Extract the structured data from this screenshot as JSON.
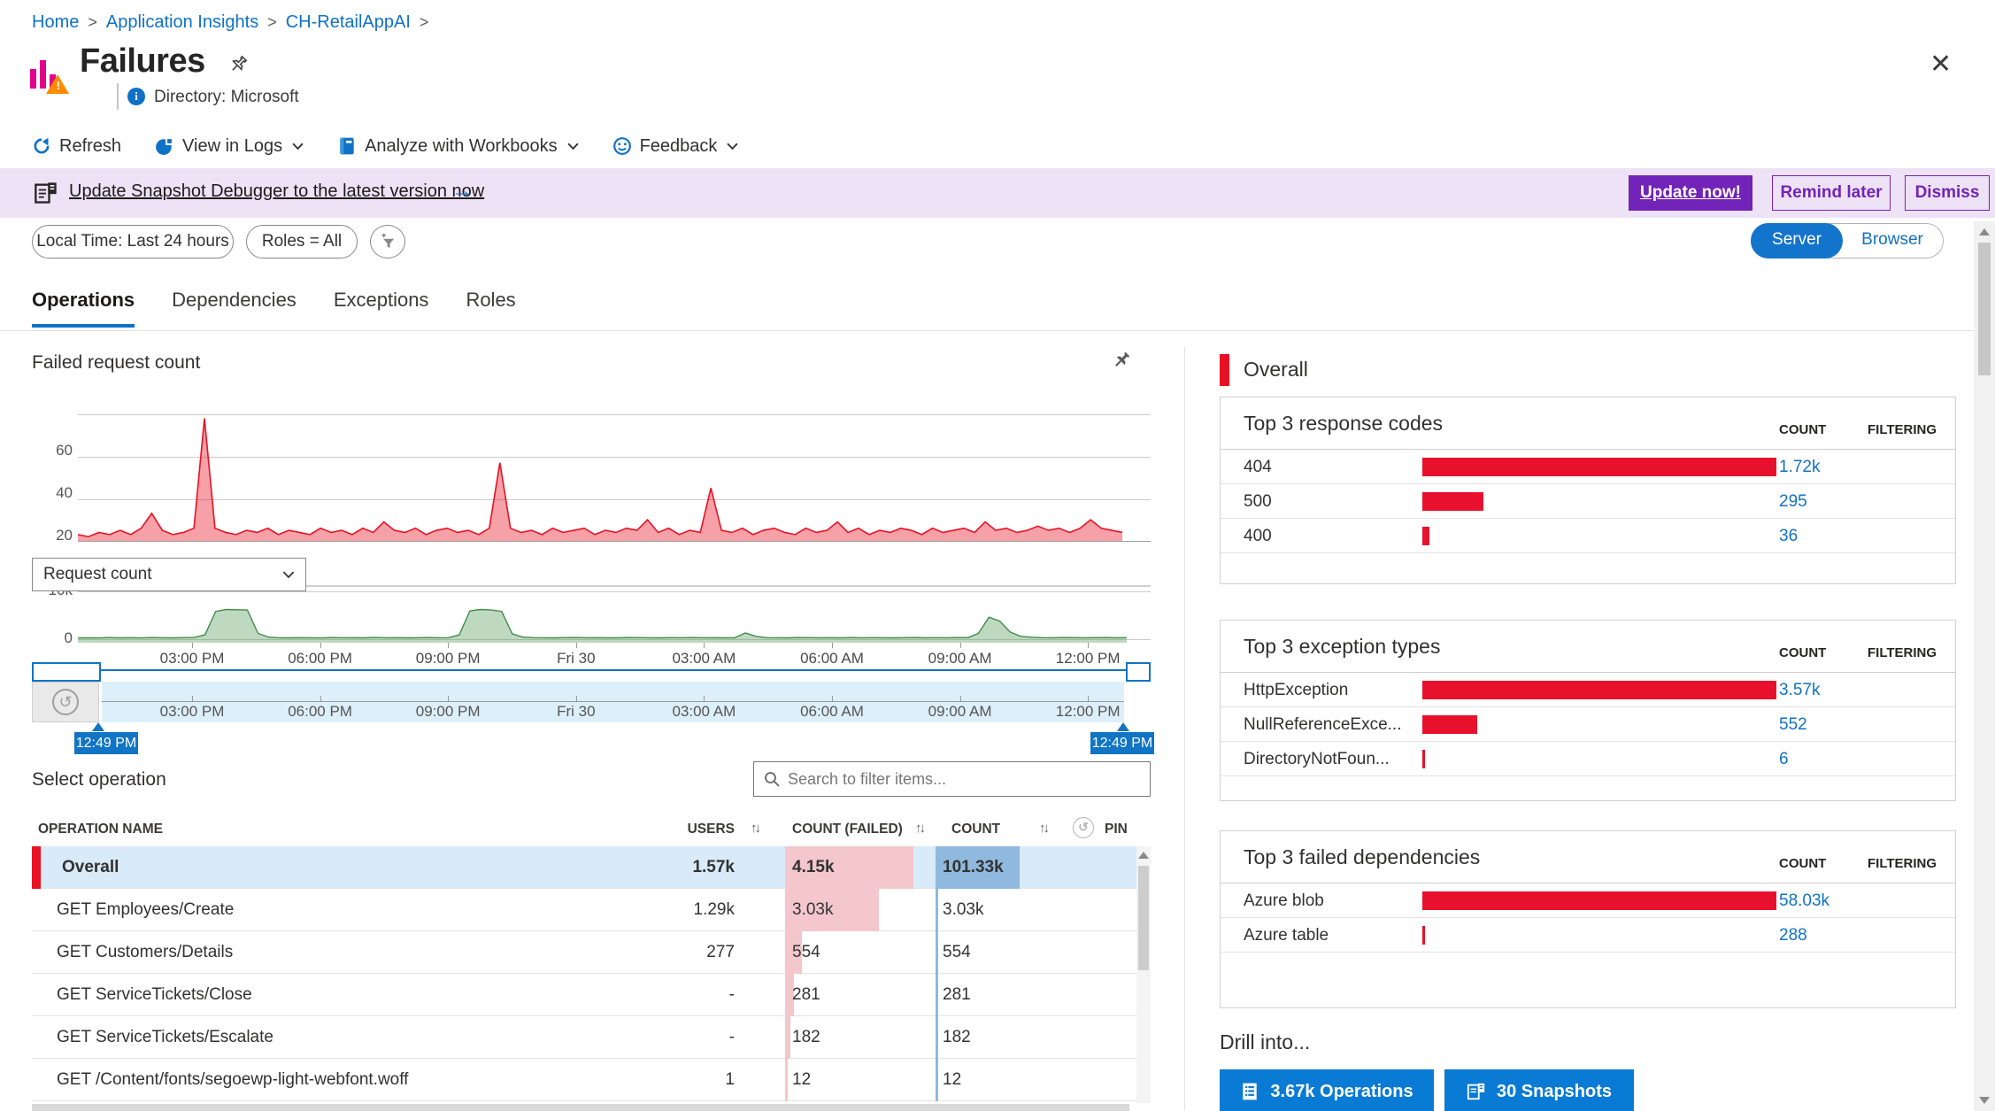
{
  "breadcrumb": {
    "items": [
      "Home",
      "Application Insights",
      "CH-RetailAppAI"
    ]
  },
  "header": {
    "title": "Failures",
    "directory": "Directory: Microsoft",
    "close": "✕"
  },
  "toolbar": {
    "refresh": "Refresh",
    "view_logs": "View in Logs",
    "analyze": "Analyze with Workbooks",
    "feedback": "Feedback"
  },
  "banner": {
    "link": "Update Snapshot Debugger to the latest version now",
    "arrow": "→",
    "update": "Update now!",
    "remind": "Remind later",
    "dismiss": "Dismiss"
  },
  "filters": {
    "time": "Local Time: Last 24 hours",
    "roles": "Roles = All"
  },
  "toggle": {
    "server": "Server",
    "browser": "Browser"
  },
  "tabs": [
    "Operations",
    "Dependencies",
    "Exceptions",
    "Roles"
  ],
  "metric_dropdown": "Request count",
  "brush": {
    "start_label": "12:49 PM",
    "end_label": "12:49 PM",
    "reset_glyph": "↺"
  },
  "select_operation": {
    "heading": "Select operation",
    "search_placeholder": "Search to filter items..."
  },
  "chart_data": [
    {
      "type": "area",
      "title": "Failed request count",
      "yticks": [
        "0",
        "20",
        "40",
        "60"
      ],
      "ylim": [
        0,
        60
      ],
      "color": "#e81123",
      "x_axis": [
        "03:00 PM",
        "06:00 PM",
        "09:00 PM",
        "Fri 30",
        "03:00 AM",
        "06:00 AM",
        "09:00 AM",
        "12:00 PM"
      ],
      "values": [
        3,
        2,
        4,
        3,
        5,
        3,
        6,
        13,
        5,
        3,
        4,
        6,
        58,
        6,
        4,
        3,
        5,
        4,
        6,
        3,
        5,
        4,
        3,
        6,
        4,
        5,
        3,
        6,
        4,
        9,
        5,
        4,
        6,
        3,
        5,
        6,
        4,
        5,
        3,
        6,
        37,
        6,
        4,
        5,
        3,
        6,
        4,
        5,
        6,
        3,
        5,
        4,
        6,
        5,
        10,
        4,
        6,
        3,
        5,
        4,
        25,
        5,
        4,
        6,
        3,
        5,
        6,
        4,
        3,
        6,
        4,
        5,
        9,
        4,
        6,
        3,
        5,
        4,
        6,
        5,
        3,
        6,
        4,
        5,
        6,
        4,
        9,
        5,
        6,
        4,
        5,
        7,
        5,
        6,
        4,
        6,
        10,
        6,
        5,
        4
      ]
    },
    {
      "type": "area",
      "title": "Request count",
      "yticks": [
        "0",
        "10k"
      ],
      "ylim": [
        0,
        10000
      ],
      "color": "#3f8f46",
      "x_axis": [
        "03:00 PM",
        "06:00 PM",
        "09:00 PM",
        "Fri 30",
        "03:00 AM",
        "06:00 AM",
        "09:00 AM",
        "12:00 PM"
      ],
      "values": [
        250,
        300,
        260,
        340,
        280,
        320,
        260,
        340,
        300,
        280,
        320,
        350,
        900,
        5800,
        6200,
        6150,
        6100,
        1200,
        420,
        300,
        280,
        320,
        300,
        260,
        340,
        300,
        320,
        280,
        350,
        300,
        320,
        280,
        300,
        340,
        300,
        320,
        900,
        5900,
        6200,
        6100,
        5800,
        1100,
        420,
        320,
        300,
        280,
        320,
        340,
        300,
        320,
        280,
        300,
        340,
        320,
        300,
        280,
        320,
        300,
        340,
        300,
        320,
        280,
        300,
        1300,
        600,
        320,
        300,
        280,
        340,
        320,
        300,
        320,
        280,
        340,
        300,
        320,
        300,
        280,
        320,
        340,
        300,
        320,
        300,
        340,
        320,
        1200,
        4600,
        3800,
        1500,
        600,
        400,
        320,
        300,
        340,
        320,
        300,
        320,
        340,
        300,
        320
      ]
    }
  ],
  "operations_table": {
    "headers": {
      "name": "OPERATION NAME",
      "users": "USERS",
      "failed": "COUNT (FAILED)",
      "count": "COUNT",
      "pin": "PIN"
    },
    "failed_max": 4150,
    "count_max": 101330,
    "rows": [
      {
        "name": "Overall",
        "users": "1.57k",
        "failed": "4.15k",
        "failed_num": 4150,
        "count": "101.33k",
        "count_num": 101330,
        "selected": true
      },
      {
        "name": "GET Employees/Create",
        "users": "1.29k",
        "failed": "3.03k",
        "failed_num": 3030,
        "count": "3.03k",
        "count_num": 3030,
        "selected": false
      },
      {
        "name": "GET Customers/Details",
        "users": "277",
        "failed": "554",
        "failed_num": 554,
        "count": "554",
        "count_num": 554,
        "selected": false
      },
      {
        "name": "GET ServiceTickets/Close",
        "users": "-",
        "failed": "281",
        "failed_num": 281,
        "count": "281",
        "count_num": 281,
        "selected": false
      },
      {
        "name": "GET ServiceTickets/Escalate",
        "users": "-",
        "failed": "182",
        "failed_num": 182,
        "count": "182",
        "count_num": 182,
        "selected": false
      },
      {
        "name": "GET /Content/fonts/segoewp-light-webfont.woff",
        "users": "1",
        "failed": "12",
        "failed_num": 12,
        "count": "12",
        "count_num": 12,
        "selected": false
      }
    ]
  },
  "right_panel": {
    "overall_label": "Overall",
    "col_count": "COUNT",
    "col_filtering": "FILTERING",
    "cards": [
      {
        "title": "Top 3 response codes",
        "max": 1720,
        "rows": [
          {
            "label": "404",
            "value": "1.72k",
            "num": 1720
          },
          {
            "label": "500",
            "value": "295",
            "num": 295
          },
          {
            "label": "400",
            "value": "36",
            "num": 36
          }
        ]
      },
      {
        "title": "Top 3 exception types",
        "max": 3570,
        "rows": [
          {
            "label": "HttpException",
            "value": "3.57k",
            "num": 3570
          },
          {
            "label": "NullReferenceExce...",
            "value": "552",
            "num": 552
          },
          {
            "label": "DirectoryNotFoun...",
            "value": "6",
            "num": 6
          }
        ]
      },
      {
        "title": "Top 3 failed dependencies",
        "max": 58030,
        "rows": [
          {
            "label": "Azure blob",
            "value": "58.03k",
            "num": 58030
          },
          {
            "label": "Azure table",
            "value": "288",
            "num": 288
          }
        ]
      }
    ]
  },
  "drill": {
    "label": "Drill into...",
    "operations": "3.67k Operations",
    "snapshots": "30 Snapshots"
  },
  "colors": {
    "accent_blue": "#1072c6",
    "error_red": "#e81123",
    "purple": "#7223b8",
    "green": "#3f8f46",
    "selected_row": "#d9eaf9",
    "failed_cell": "#f3c7cc",
    "count_cell": "#8fb9de",
    "banner_bg": "#eee2f6"
  }
}
